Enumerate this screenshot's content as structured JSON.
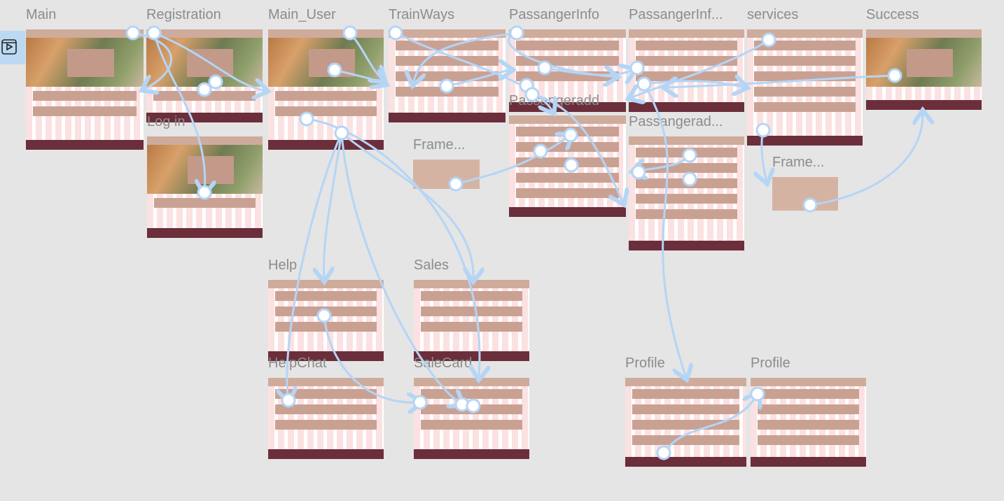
{
  "canvas": {
    "frames": [
      {
        "label": "Main"
      },
      {
        "label": "Registration"
      },
      {
        "label": "Main_User"
      },
      {
        "label": "TrainWays"
      },
      {
        "label": "PassangerInfo"
      },
      {
        "label": "PassangerInf..."
      },
      {
        "label": "services"
      },
      {
        "label": "Success"
      },
      {
        "label": "Log in"
      },
      {
        "label": "Passangeradd"
      },
      {
        "label": "Passangerad..."
      },
      {
        "label": "Frame..."
      },
      {
        "label": "Frame..."
      },
      {
        "label": "Help"
      },
      {
        "label": "Sales"
      },
      {
        "label": "HelpChat"
      },
      {
        "label": "SaleCard"
      },
      {
        "label": "Profile"
      },
      {
        "label": "Profile"
      }
    ]
  }
}
